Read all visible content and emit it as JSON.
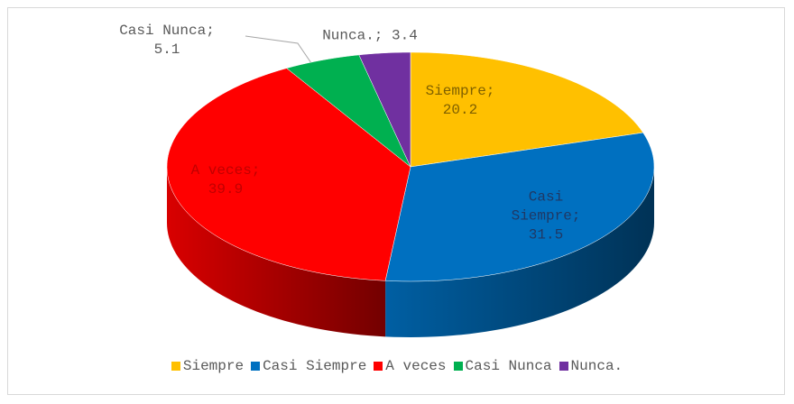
{
  "chart_data": {
    "type": "pie3d",
    "categories": [
      "Siempre",
      "Casi Siempre",
      "A veces",
      "Casi Nunca",
      "Nunca."
    ],
    "values": [
      20.2,
      31.5,
      39.9,
      5.1,
      3.4
    ],
    "value_labels": [
      "Siempre; 20.2",
      "Casi Siempre; 31.5",
      "A veces; 39.9",
      "Casi Nunca; 5.1",
      "Nunca.; 3.4"
    ],
    "colors": [
      "#ffc000",
      "#0070c0",
      "#ff0000",
      "#00b050",
      "#7030a0"
    ],
    "legend": "bottom"
  }
}
